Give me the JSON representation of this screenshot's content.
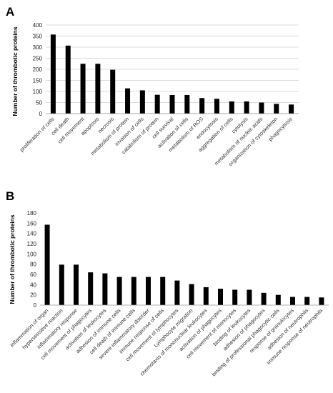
{
  "chart_data": [
    {
      "panel": "A",
      "type": "bar",
      "ylabel": "Number of thrombotic proteins",
      "xlabel": "",
      "ylim": [
        0,
        400
      ],
      "yticks": [
        0,
        50,
        100,
        150,
        200,
        250,
        300,
        350,
        400
      ],
      "grid": true,
      "bar_color": "#000000",
      "categories": [
        "proliferation of cells",
        "cell death",
        "cell movement",
        "apoptosis",
        "necrosis",
        "metabolism of protein",
        "invasion of cells",
        "catabolism of protein",
        "cell survival",
        "activation of cells",
        "metabolism of ROS",
        "endocytosis",
        "aggregation of cells",
        "cytolysis",
        "metabolism of nucleic acids",
        "organization of cytoskeleton",
        "phagocytosis"
      ],
      "values": [
        357,
        307,
        225,
        225,
        198,
        114,
        105,
        85,
        84,
        84,
        70,
        67,
        55,
        55,
        50,
        44,
        41
      ]
    },
    {
      "panel": "B",
      "type": "bar",
      "ylabel": "Number of thrombotic proteins",
      "xlabel": "",
      "ylim": [
        0,
        180
      ],
      "yticks": [
        0,
        20,
        40,
        60,
        80,
        100,
        120,
        140,
        160,
        180
      ],
      "grid": false,
      "bar_color": "#000000",
      "categories": [
        "inflammation of organ",
        "hypersensitive reaction",
        "inflammatory response",
        "cell movement of phagocytes",
        "activation of leukocytes",
        "adhesion of immune cells",
        "cell death of immune cells",
        "severe inflammatory disorder",
        "immune response of cells",
        "cell movement of lymphocytes",
        "Lymphocyte migration",
        "chemotaxis of mononuclear leukocytes",
        "activation of phagocytes",
        "cell movement of monocytes",
        "binding of leukocytes",
        "adhesion of phagocytes",
        "binding of professional phagocytic cells",
        "response of granulocytes",
        "adhesion of neutrophils",
        "immune response of neutrophils"
      ],
      "values": [
        157,
        79,
        79,
        64,
        62,
        55,
        55,
        55,
        55,
        48,
        41,
        35,
        32,
        30,
        30,
        24,
        20,
        16,
        16,
        15
      ]
    }
  ]
}
